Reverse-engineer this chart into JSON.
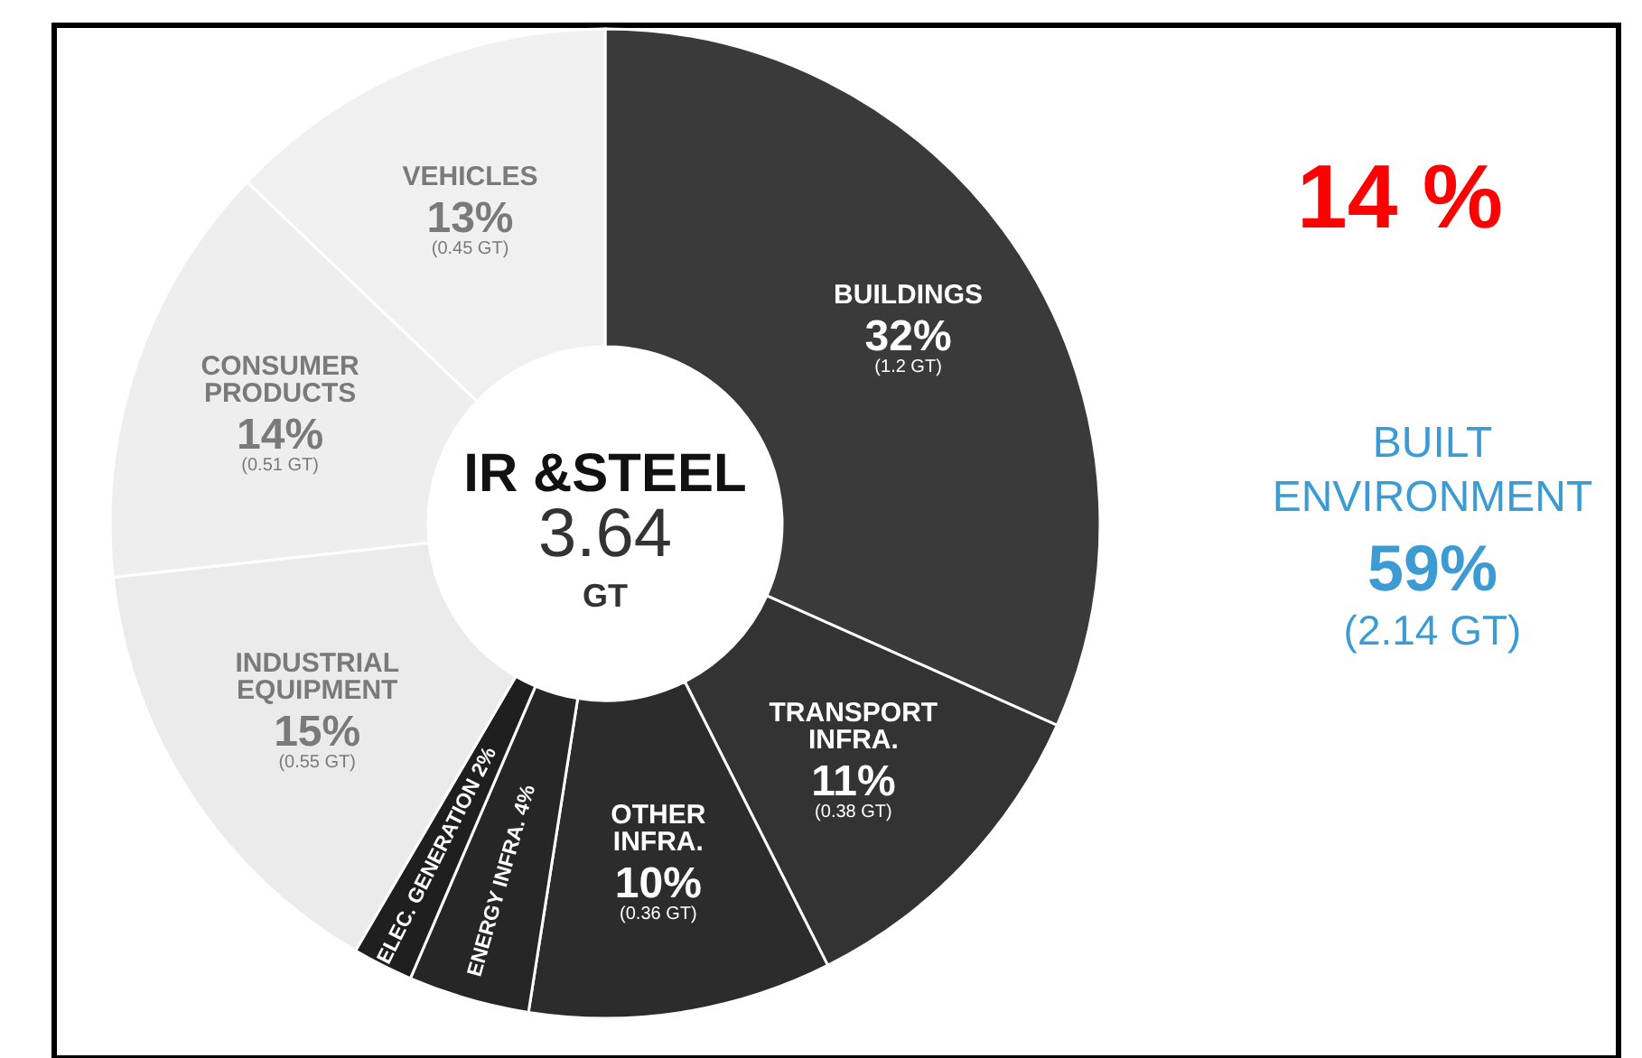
{
  "chart_data": {
    "type": "donut",
    "title": "IR &STEEL",
    "categories": [
      "BUILDINGS",
      "TRANSPORT\nINFRA.",
      "OTHER\nINFRA.",
      "ENERGY INFRA.",
      "ELEC. GENERATION",
      "INDUSTRIAL\nEQUIPMENT",
      "CONSUMER\nPRODUCTS",
      "VEHICLES"
    ],
    "values": [
      32,
      11,
      10,
      4,
      2,
      15,
      14,
      13
    ],
    "colors": [
      "#3a3a3a",
      "#333333",
      "#2c2c2c",
      "#262626",
      "#1f1f1f",
      "#ebebeb",
      "#eeeeee",
      "#f0f0f0"
    ],
    "value_labels": [
      "32%\n(1.2 GT)",
      "11%\n(0.38 GT)",
      "10%\n(0.36 GT)",
      "4%",
      "2%",
      "15%\n(0.55 GT)",
      "14%\n(0.51 GT)",
      "13%\n(0.45 GT)"
    ],
    "annotations": [
      "3.64\nGT",
      "14 %",
      "BUILT\nENVIRONMENT\n59%\n(2.14 GT)"
    ]
  }
}
